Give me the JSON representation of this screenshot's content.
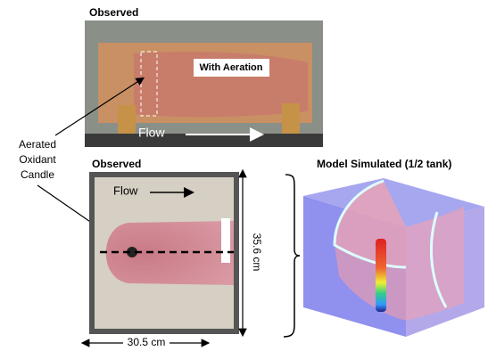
{
  "top_panel": {
    "title": "Observed",
    "inset_label": "With Aeration",
    "flow_label": "Flow"
  },
  "callout": {
    "lines": [
      "Aerated",
      "Oxidant",
      "Candle"
    ]
  },
  "bottom_panel": {
    "title": "Observed",
    "flow_label": "Flow",
    "height_label": "35.6 cm",
    "width_label": "30.5 cm"
  },
  "model_panel": {
    "title": "Model Simulated (1/2 tank)"
  }
}
